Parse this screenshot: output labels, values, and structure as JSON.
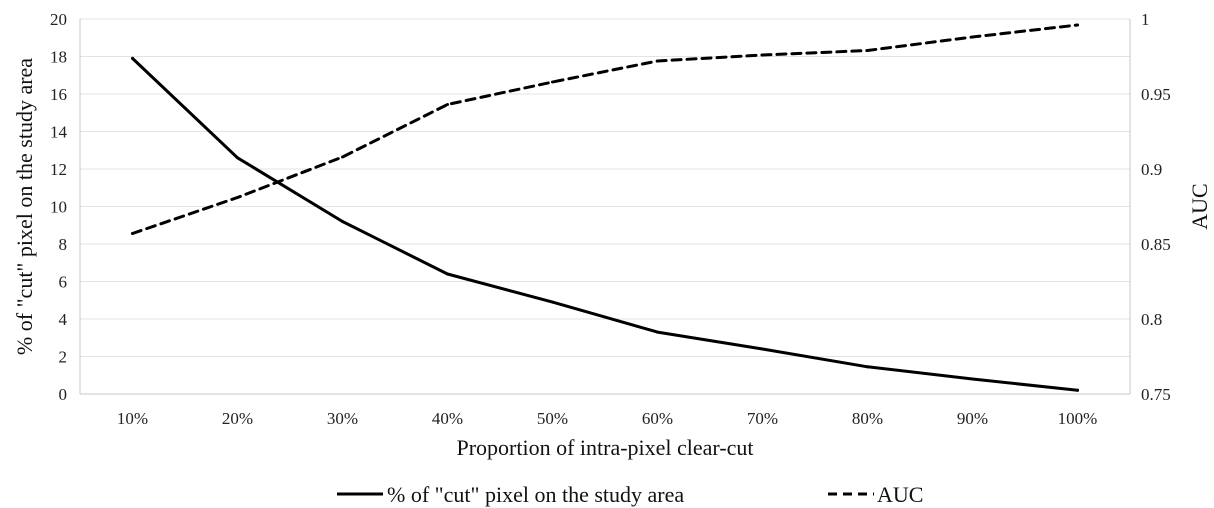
{
  "chart_data": {
    "type": "line",
    "categories": [
      "10%",
      "20%",
      "30%",
      "40%",
      "50%",
      "60%",
      "70%",
      "80%",
      "90%",
      "100%"
    ],
    "series": [
      {
        "name": "%  of \"cut\" pixel on the study area",
        "axis": "left",
        "style": "solid",
        "values": [
          17.9,
          12.6,
          9.2,
          6.4,
          4.9,
          3.3,
          2.4,
          1.45,
          0.8,
          0.2
        ]
      },
      {
        "name": "AUC",
        "axis": "right",
        "style": "dashed",
        "values": [
          0.857,
          0.881,
          0.908,
          0.943,
          0.958,
          0.972,
          0.976,
          0.979,
          0.988,
          0.996
        ]
      }
    ],
    "xlabel": "Proportion of intra-pixel clear-cut",
    "ylabel": "% of \"cut\" pixel on the study area",
    "y2label": "AUC",
    "ylim": [
      0,
      20
    ],
    "y2lim": [
      0.75,
      1
    ],
    "yticks": [
      "0",
      "2",
      "4",
      "6",
      "8",
      "10",
      "12",
      "14",
      "16",
      "18",
      "20"
    ],
    "y2ticks": [
      "0.75",
      "0.8",
      "0.85",
      "0.9",
      "0.95",
      "1"
    ],
    "grid": true,
    "legend": "bottom",
    "colors": {
      "lines": "#000000",
      "grid": "#e3e3e3",
      "axis": "#c8c8c8"
    }
  }
}
